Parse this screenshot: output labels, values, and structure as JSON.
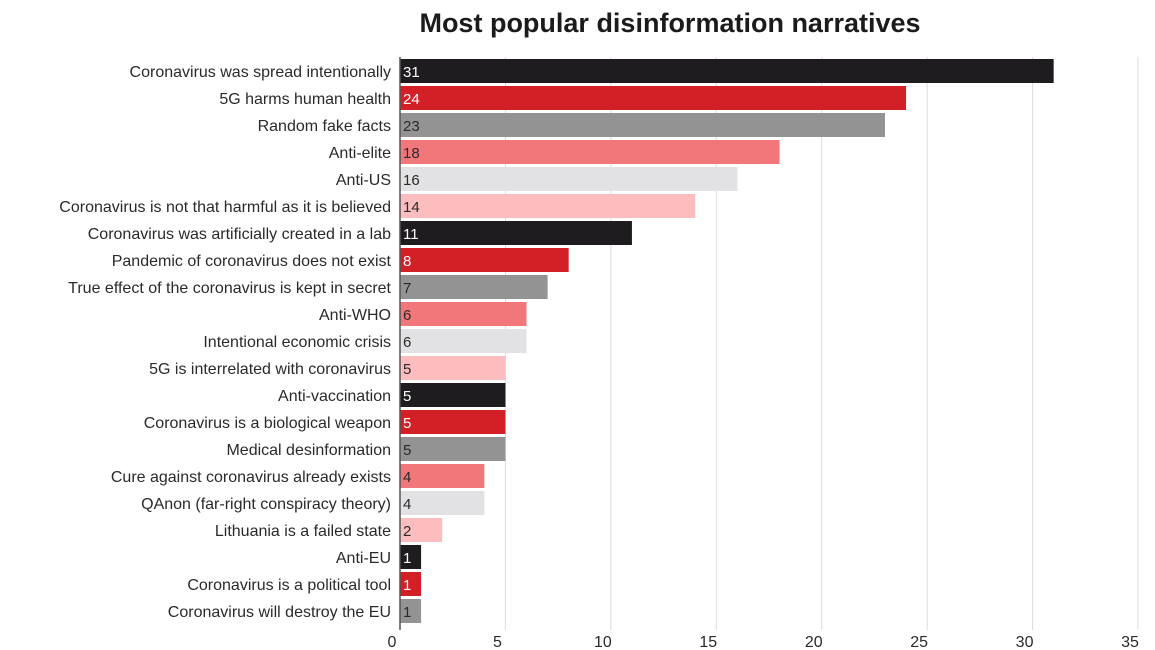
{
  "chart_data": {
    "type": "bar",
    "orientation": "horizontal",
    "title": "Most popular disinformation narratives",
    "xlabel": "",
    "ylabel": "",
    "xlim": [
      0,
      35
    ],
    "xticks": [
      "0",
      "5",
      "10",
      "15",
      "20",
      "25",
      "30",
      "35"
    ],
    "grid": true,
    "categories": [
      "Coronavirus was spread intentionally",
      "5G harms human health",
      "Random fake facts",
      "Anti-elite",
      "Anti-US",
      "Coronavirus is not that harmful as it is believed",
      "Coronavirus was artificially created in a lab",
      "Pandemic of coronavirus does not exist",
      "True effect of the coronavirus is kept in secret",
      "Anti-WHO",
      "Intentional economic crisis",
      "5G is interrelated with coronavirus",
      "Anti-vaccination",
      "Coronavirus is a biological weapon",
      "Medical desinformation",
      "Cure against coronavirus already exists",
      "QAnon (far-right conspiracy theory)",
      "Lithuania is a failed state",
      "Anti-EU",
      "Coronavirus is a political tool",
      "Coronavirus will destroy the EU"
    ],
    "values": [
      31,
      24,
      23,
      18,
      16,
      14,
      11,
      8,
      7,
      6,
      6,
      5,
      5,
      5,
      5,
      4,
      4,
      2,
      1,
      1,
      1
    ],
    "value_labels": [
      "31",
      "24",
      "23",
      "18",
      "16",
      "14",
      "11",
      "8",
      "7",
      "6",
      "6",
      "5",
      "5",
      "5",
      "5",
      "4",
      "4",
      "2",
      "1",
      "1",
      "1"
    ],
    "colors": [
      "#1e1c1e",
      "#d31f26",
      "#939393",
      "#f2777a",
      "#e2e2e4",
      "#fdbcbe"
    ],
    "label_colors": [
      "#ffffff",
      "#ffffff",
      "#2a2a2a",
      "#2a2a2a",
      "#2a2a2a",
      "#2a2a2a"
    ]
  }
}
